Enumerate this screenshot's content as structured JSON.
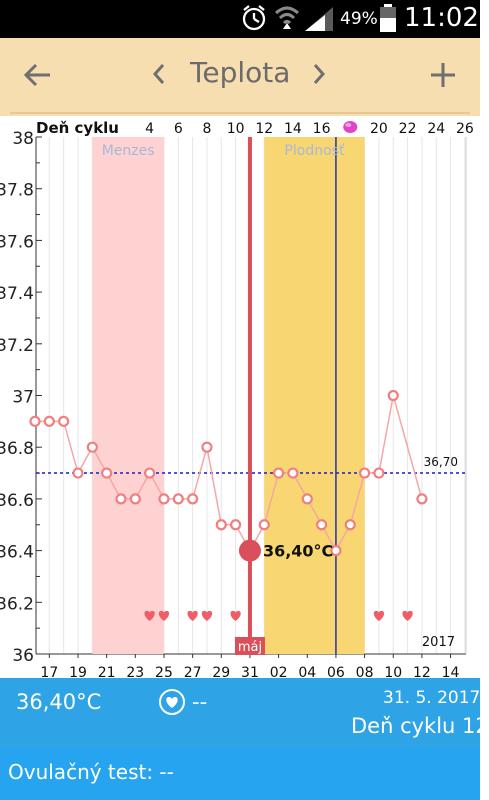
{
  "status_bar": {
    "battery": "49%",
    "time": "11:02",
    "icons": [
      "alarm-icon",
      "wifi-icon",
      "signal-icon",
      "battery-icon"
    ]
  },
  "toolbar": {
    "back_icon": "back-arrow-icon",
    "prev_icon": "chevron-left-icon",
    "title": "Teplota",
    "next_icon": "chevron-right-icon",
    "add_icon": "plus-icon"
  },
  "chart_data": {
    "type": "line",
    "title": "",
    "top_axis_label": "Deň cyklu",
    "top_ticks": [
      "4",
      "6",
      "8",
      "10",
      "12",
      "14",
      "16",
      "",
      "20",
      "22",
      "24",
      "26"
    ],
    "ovulation_icon": "egg-icon",
    "bottom_ticks": [
      "17",
      "19",
      "21",
      "23",
      "25",
      "27",
      "29",
      "31",
      "02",
      "04",
      "06",
      "08",
      "10",
      "12",
      "14"
    ],
    "y_ticks": [
      "38",
      "37.8",
      "37.6",
      "37.4",
      "37.2",
      "37",
      "36.8",
      "36.6",
      "36.4",
      "36.2",
      "36"
    ],
    "ylim": [
      36,
      38
    ],
    "series": [
      {
        "values": [
          36.9,
          36.9,
          36.9,
          36.7,
          36.8,
          36.7,
          36.6,
          36.6,
          36.7,
          36.6,
          36.6,
          36.6,
          36.8,
          36.5,
          36.5,
          36.4,
          36.5,
          36.7,
          36.7,
          36.6,
          36.5,
          36.4,
          36.5,
          36.7,
          36.7,
          37.0,
          null,
          36.6
        ],
        "color": "#f08080"
      }
    ],
    "selected_value_label": "36,40°C",
    "coverline_label": "36,70",
    "coverline_value": 36.7,
    "menses_label": "Menzes",
    "fertility_label": "Plodnosť",
    "month_label": "máj",
    "year_label": "2017",
    "colors": {
      "menses": "#ffd2d2",
      "fertility": "#f8d772",
      "selected_day": "#d9505a",
      "ovulation_line": "#2233aa",
      "coverline": "#1a1acc",
      "points": "#f08080",
      "hearts": "#ef5d67"
    }
  },
  "bottom": {
    "temperature": "36,40°C",
    "heart_icon": "heart-icon",
    "heart_value": "--",
    "date": "31. 5. 2017",
    "cycle_day": "Deň cyklu 12",
    "ovulation_test": "Ovulačný test: --"
  }
}
